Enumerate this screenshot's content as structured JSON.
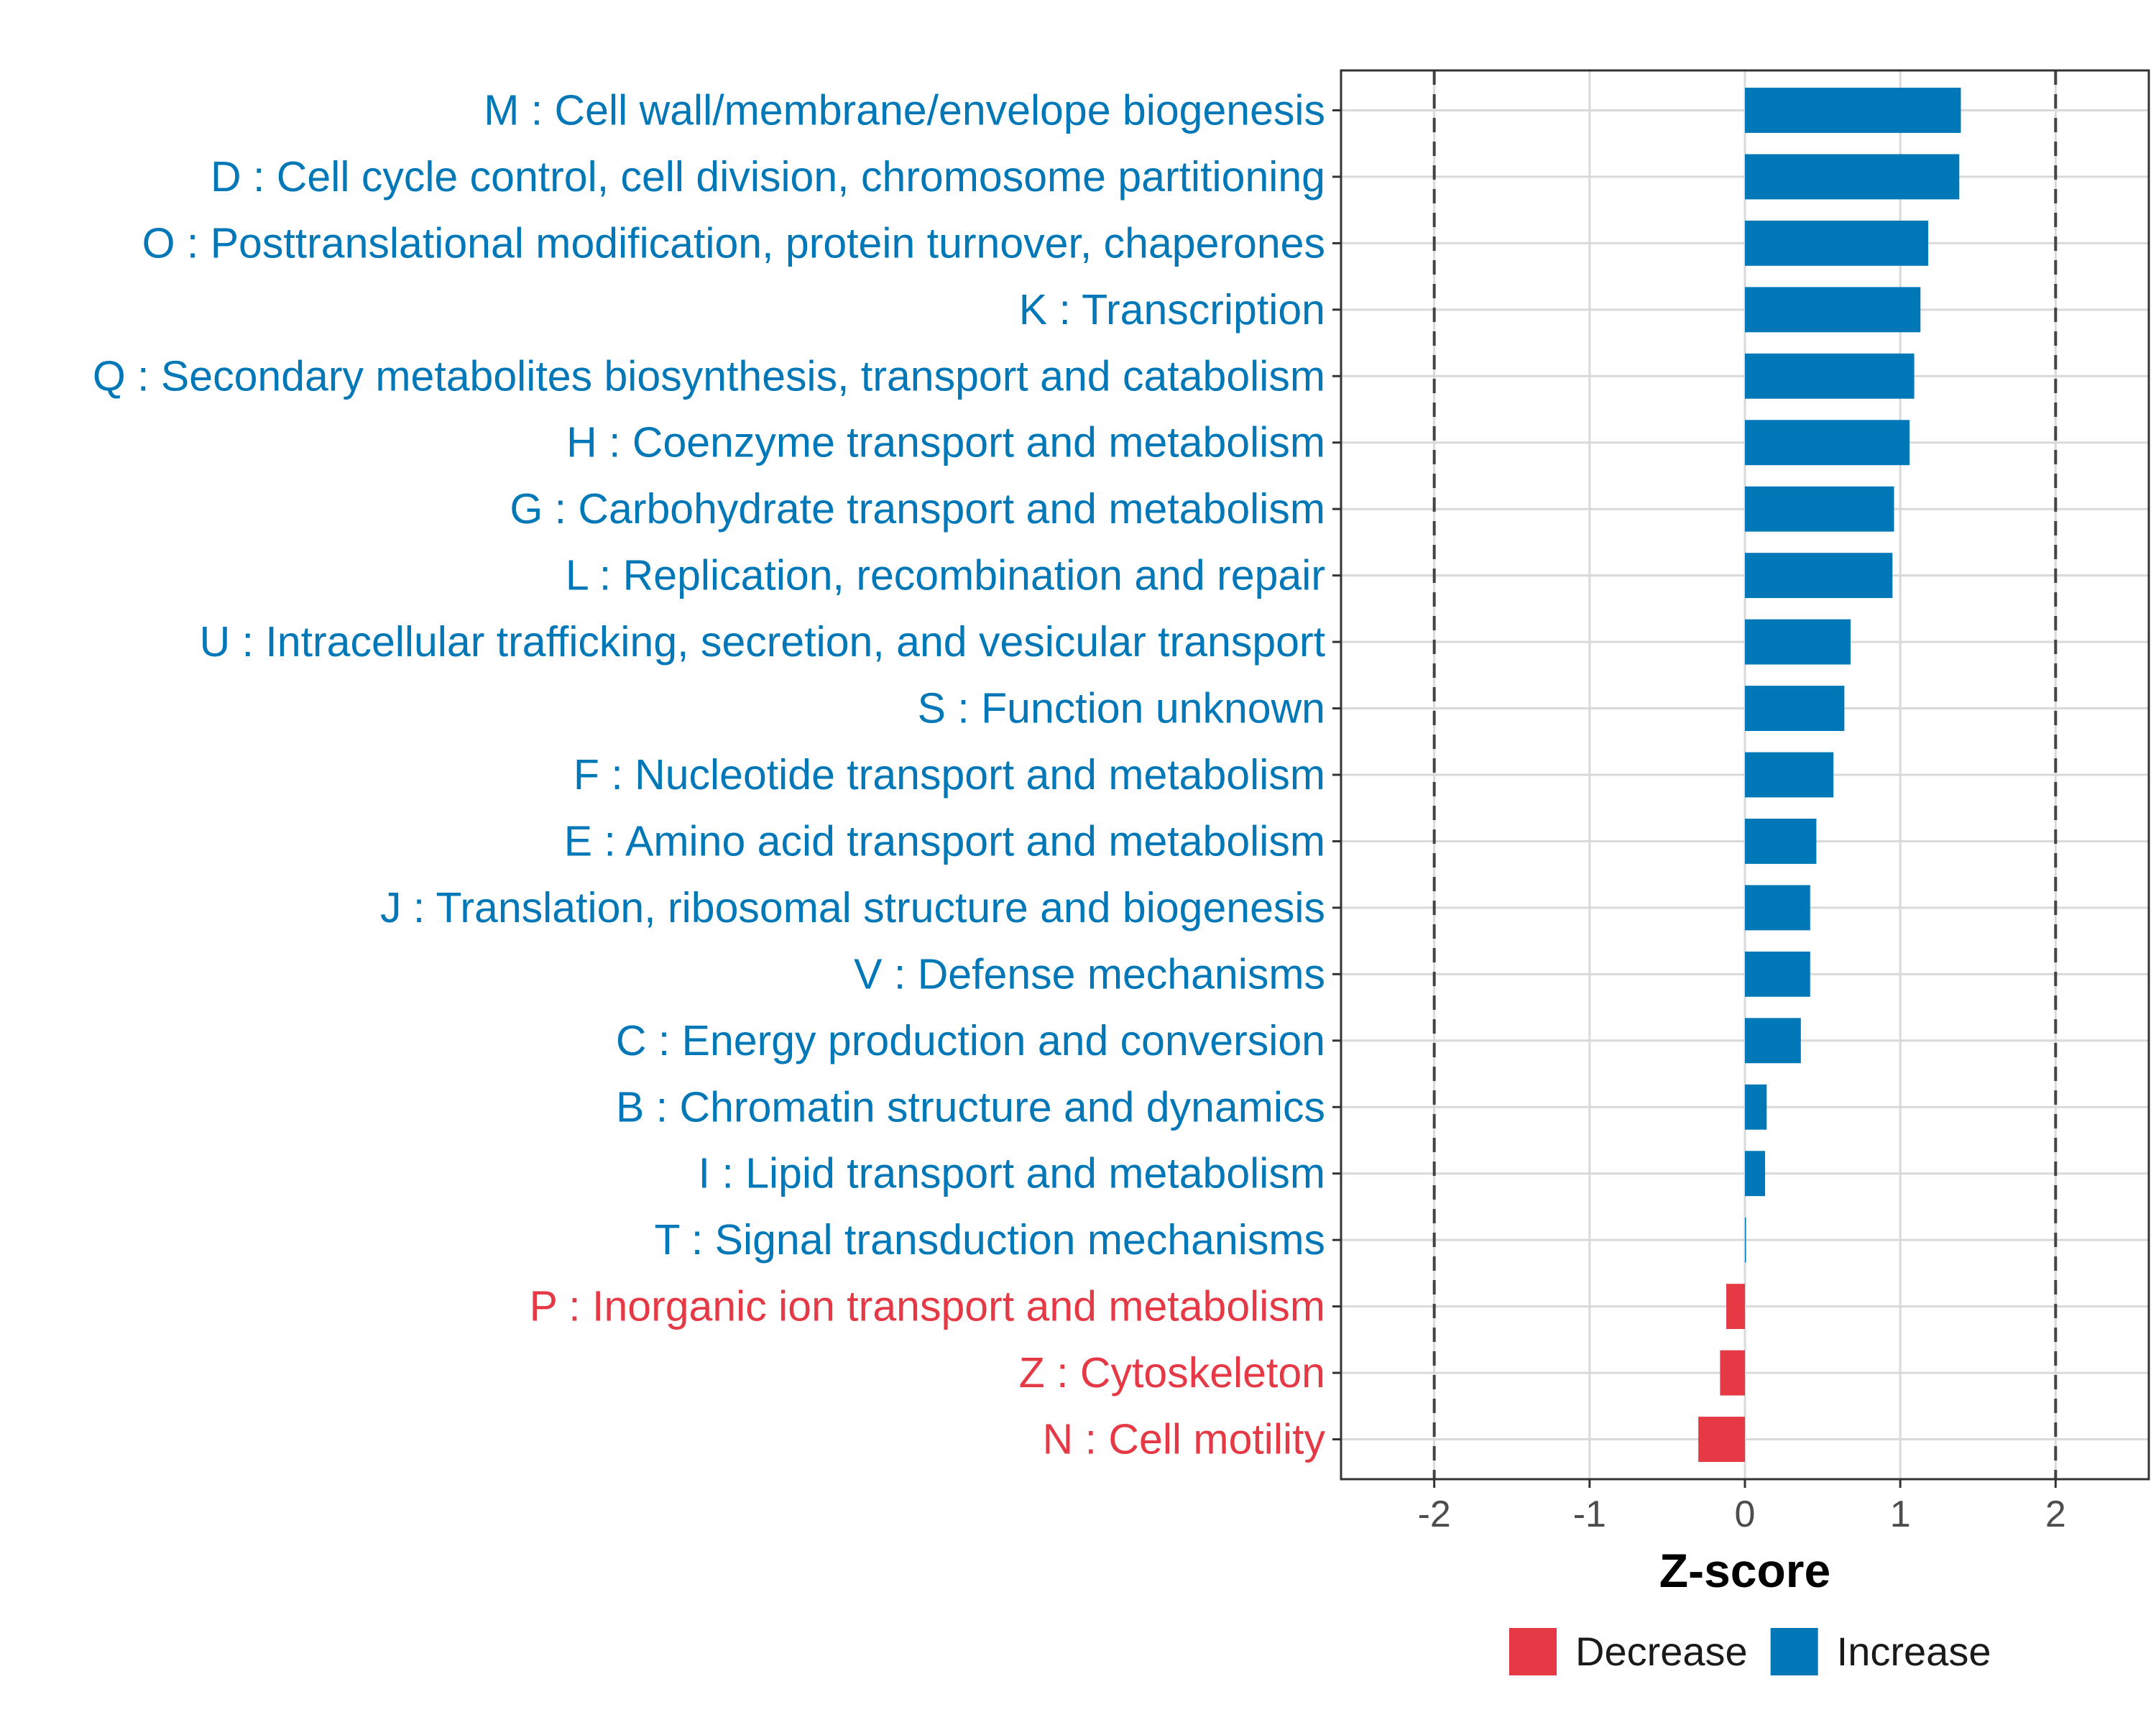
{
  "chart_data": {
    "type": "bar",
    "orientation": "horizontal",
    "title": "",
    "xlabel": "Z-score",
    "ylabel": "",
    "xlim": [
      -2.6,
      2.6
    ],
    "xticks": [
      -2,
      -1,
      0,
      1,
      2
    ],
    "xtick_labels": [
      "-2",
      "-1",
      "0",
      "1",
      "2"
    ],
    "reference_lines": [
      -2,
      2
    ],
    "grid": true,
    "legend_position": "bottom",
    "colors": {
      "Decrease": "#E63946",
      "Increase": "#0077B6"
    },
    "categories": [
      "M : Cell wall/membrane/envelope biogenesis",
      "D : Cell cycle control, cell division, chromosome partitioning",
      "O : Posttranslational modification, protein turnover, chaperones",
      "K : Transcription",
      "Q : Secondary metabolites biosynthesis, transport and catabolism",
      "H : Coenzyme transport and metabolism",
      "G : Carbohydrate transport and metabolism",
      "L : Replication, recombination and repair",
      "U : Intracellular trafficking, secretion, and vesicular transport",
      "S : Function unknown",
      "F : Nucleotide transport and metabolism",
      "E : Amino acid transport and metabolism",
      "J : Translation, ribosomal structure and biogenesis",
      "V : Defense mechanisms",
      "C : Energy production and conversion",
      "B : Chromatin structure and dynamics",
      "I : Lipid transport and metabolism",
      "T : Signal transduction mechanisms",
      "P : Inorganic ion transport and metabolism",
      "Z : Cytoskeleton",
      "N : Cell motility"
    ],
    "values": [
      1.39,
      1.38,
      1.18,
      1.13,
      1.09,
      1.06,
      0.96,
      0.95,
      0.68,
      0.64,
      0.57,
      0.46,
      0.42,
      0.42,
      0.36,
      0.14,
      0.13,
      0.005,
      -0.12,
      -0.16,
      -0.3
    ],
    "groups": [
      "Increase",
      "Increase",
      "Increase",
      "Increase",
      "Increase",
      "Increase",
      "Increase",
      "Increase",
      "Increase",
      "Increase",
      "Increase",
      "Increase",
      "Increase",
      "Increase",
      "Increase",
      "Increase",
      "Increase",
      "Increase",
      "Decrease",
      "Decrease",
      "Decrease"
    ],
    "legend": [
      {
        "label": "Decrease",
        "color": "#E63946"
      },
      {
        "label": "Increase",
        "color": "#0077B6"
      }
    ]
  }
}
